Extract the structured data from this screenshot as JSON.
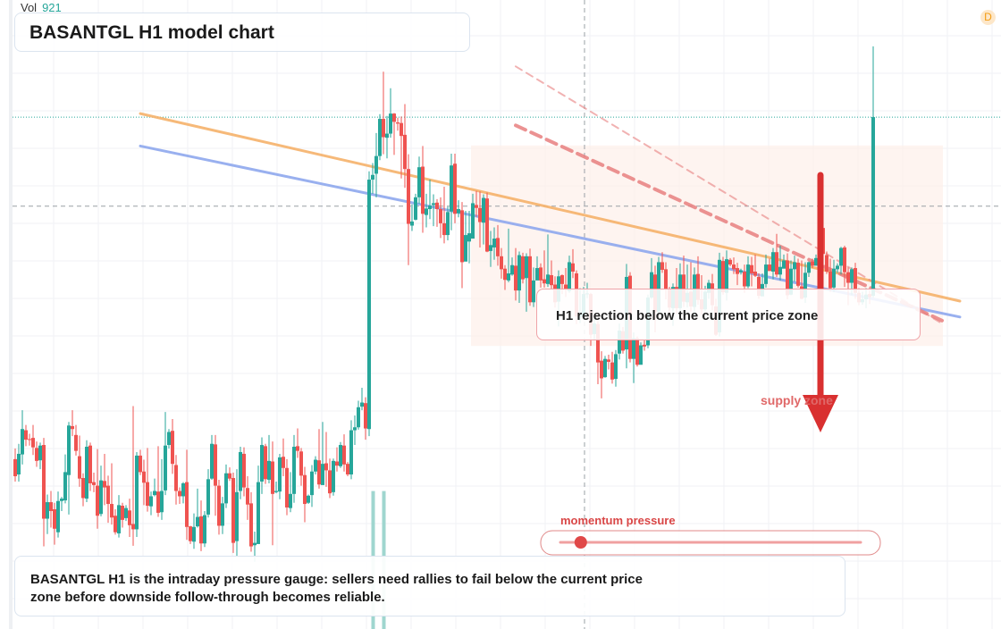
{
  "header": {
    "title": "BASANTGL H1 model chart",
    "volume_label": "Vol",
    "volume_value": "921",
    "badge": "D"
  },
  "annotations": {
    "callout": "H1 rejection below the current price zone",
    "zone_label": "supply zone",
    "gauge_label": "momentum pressure",
    "gauge_level": 0.05
  },
  "footer": {
    "text": "BASANTGL H1 is the intraday pressure gauge: sellers need rallies to fail below the current price zone before downside follow-through becomes reliable."
  },
  "colors": {
    "bull": "#26a69a",
    "bear": "#ef5350",
    "resistance_trend": "#f6b26b",
    "support_trend": "#8fa8ee",
    "down_channel": "#e88080",
    "arrow": "#d93030"
  },
  "chart_data": {
    "type": "candlestick",
    "timeframe": "H1",
    "ylim": [
      0,
      100
    ],
    "current_price": 71.1,
    "reference_level": 86.2,
    "zone": [
      47.4,
      81.4
    ],
    "candles": [
      [
        28.2,
        25.3,
        30.0,
        24.4
      ],
      [
        25.6,
        29.1,
        30.8,
        24.4
      ],
      [
        29.0,
        33.3,
        36.5,
        27.3
      ],
      [
        33.1,
        31.5,
        34.0,
        30.4
      ],
      [
        31.6,
        31.5,
        32.5,
        30.5
      ],
      [
        31.8,
        30.2,
        34.0,
        28.9
      ],
      [
        30.1,
        27.9,
        31.2,
        26.9
      ],
      [
        28.0,
        30.5,
        31.0,
        26.5
      ],
      [
        30.6,
        18.1,
        31.8,
        13.4
      ],
      [
        18.1,
        20.9,
        22.2,
        15.5
      ],
      [
        20.9,
        19.4,
        22.8,
        16.6
      ],
      [
        19.7,
        16.4,
        20.8,
        13.7
      ],
      [
        15.8,
        21.1,
        22.7,
        14.9
      ],
      [
        21.1,
        21.5,
        21.8,
        19.4
      ],
      [
        21.2,
        26.0,
        29.0,
        20.7
      ],
      [
        25.5,
        33.9,
        34.5,
        18.8
      ],
      [
        33.8,
        33.3,
        36.5,
        32.1
      ],
      [
        32.3,
        29.6,
        34.0,
        28.8
      ],
      [
        28.7,
        24.9,
        32.2,
        23.5
      ],
      [
        25.0,
        21.6,
        25.8,
        20.2
      ],
      [
        21.5,
        30.3,
        31.4,
        20.9
      ],
      [
        30.5,
        24.1,
        31.0,
        22.8
      ],
      [
        24.3,
        23.8,
        25.9,
        22.6
      ],
      [
        23.7,
        18.6,
        29.9,
        16.4
      ],
      [
        18.9,
        24.6,
        27.1,
        18.5
      ],
      [
        24.5,
        23.4,
        29.1,
        20.4
      ],
      [
        23.7,
        20.6,
        25.4,
        17.4
      ],
      [
        20.6,
        18.3,
        27.5,
        17.1
      ],
      [
        18.6,
        15.8,
        19.7,
        15.4
      ],
      [
        15.6,
        20.4,
        22.1,
        14.9
      ],
      [
        20.3,
        17.9,
        20.8,
        16.6
      ],
      [
        18.2,
        19.9,
        20.4,
        17.7
      ],
      [
        19.5,
        17.0,
        21.5,
        15.0
      ],
      [
        17.2,
        16.3,
        37.2,
        13.5
      ],
      [
        16.3,
        28.8,
        29.4,
        15.0
      ],
      [
        28.8,
        26.0,
        29.8,
        25.5
      ],
      [
        26.1,
        24.2,
        28.1,
        20.4
      ],
      [
        24.3,
        20.3,
        30.1,
        19.3
      ],
      [
        20.2,
        21.9,
        22.7,
        18.7
      ],
      [
        22.1,
        22.8,
        24.9,
        21.9
      ],
      [
        22.7,
        19.1,
        30.4,
        18.4
      ],
      [
        19.2,
        22.8,
        28.2,
        17.9
      ],
      [
        22.9,
        30.5,
        36.2,
        22.1
      ],
      [
        30.6,
        32.8,
        33.3,
        30.0
      ],
      [
        33.0,
        27.4,
        35.0,
        25.7
      ],
      [
        27.2,
        22.8,
        28.9,
        20.5
      ],
      [
        22.8,
        21.9,
        23.4,
        20.6
      ],
      [
        21.9,
        24.1,
        24.3,
        20.7
      ],
      [
        24.3,
        16.7,
        29.8,
        14.5
      ],
      [
        16.8,
        14.3,
        16.9,
        13.8
      ],
      [
        14.2,
        16.7,
        19.0,
        13.0
      ],
      [
        16.8,
        18.4,
        23.2,
        16.6
      ],
      [
        18.5,
        13.9,
        21.2,
        12.6
      ],
      [
        13.9,
        18.7,
        19.4,
        13.3
      ],
      [
        18.8,
        24.8,
        26.5,
        18.3
      ],
      [
        24.9,
        30.8,
        32.3,
        24.7
      ],
      [
        30.7,
        23.7,
        32.3,
        18.6
      ],
      [
        23.7,
        16.9,
        24.7,
        15.4
      ],
      [
        16.9,
        20.7,
        21.8,
        15.5
      ],
      [
        20.7,
        25.8,
        27.3,
        19.9
      ],
      [
        25.8,
        24.9,
        26.8,
        24.5
      ],
      [
        25.0,
        14.0,
        25.9,
        12.3
      ],
      [
        14.3,
        22.6,
        26.5,
        11.6
      ],
      [
        22.8,
        29.4,
        30.3,
        21.4
      ],
      [
        29.1,
        23.4,
        30.2,
        21.9
      ],
      [
        23.3,
        20.5,
        25.3,
        17.9
      ],
      [
        20.7,
        13.4,
        22.6,
        12.5
      ],
      [
        13.6,
        14.0,
        15.9,
        10.8
      ],
      [
        13.8,
        24.3,
        27.1,
        13.8
      ],
      [
        24.4,
        30.6,
        31.9,
        22.3
      ],
      [
        30.4,
        24.8,
        30.8,
        24.0
      ],
      [
        24.7,
        27.9,
        32.3,
        24.1
      ],
      [
        27.8,
        22.3,
        31.2,
        13.6
      ],
      [
        22.6,
        22.8,
        24.4,
        22.4
      ],
      [
        22.7,
        28.5,
        29.1,
        21.4
      ],
      [
        28.6,
        26.7,
        31.7,
        25.3
      ],
      [
        26.7,
        20.0,
        28.2,
        18.7
      ],
      [
        19.9,
        22.3,
        26.0,
        19.2
      ],
      [
        22.3,
        30.3,
        32.3,
        20.8
      ],
      [
        30.4,
        29.6,
        33.4,
        28.4
      ],
      [
        29.5,
        25.4,
        30.1,
        23.7
      ],
      [
        25.5,
        20.6,
        26.9,
        17.5
      ],
      [
        20.8,
        22.0,
        22.2,
        20.6
      ],
      [
        22.1,
        26.1,
        27.2,
        20.1
      ],
      [
        26.1,
        28.1,
        28.7,
        25.6
      ],
      [
        28.0,
        23.9,
        33.3,
        23.2
      ],
      [
        23.8,
        27.4,
        34.5,
        26.1
      ],
      [
        27.5,
        26.3,
        32.8,
        23.5
      ],
      [
        26.3,
        22.4,
        28.3,
        21.6
      ],
      [
        22.6,
        27.9,
        28.3,
        22.0
      ],
      [
        27.8,
        27.1,
        30.2,
        26.1
      ],
      [
        27.0,
        30.6,
        31.1,
        26.7
      ],
      [
        30.5,
        27.3,
        32.4,
        26.1
      ],
      [
        27.4,
        25.6,
        27.7,
        25.3
      ],
      [
        25.6,
        33.1,
        34.8,
        24.8
      ],
      [
        33.1,
        33.6,
        35.6,
        30.6
      ],
      [
        33.6,
        37.0,
        38.1,
        33.2
      ],
      [
        37.1,
        37.8,
        40.3,
        36.5
      ],
      [
        37.7,
        33.4,
        38.7,
        31.5
      ],
      [
        33.3,
        75.6,
        77.0,
        32.1
      ],
      [
        75.6,
        76.4,
        78.4,
        73.2
      ],
      [
        76.6,
        79.6,
        83.5,
        72.6
      ],
      [
        79.6,
        85.9,
        86.7,
        78.9
      ],
      [
        85.9,
        82.8,
        93.9,
        79.9
      ],
      [
        82.7,
        83.4,
        86.4,
        79.2
      ],
      [
        83.4,
        86.8,
        91.1,
        82.7
      ],
      [
        86.8,
        85.4,
        86.9,
        79.8
      ],
      [
        85.3,
        85.1,
        86.1,
        83.9
      ],
      [
        85.2,
        83.0,
        86.3,
        75.8
      ],
      [
        83.2,
        77.4,
        88.4,
        74.2
      ],
      [
        77.4,
        68.1,
        79.9,
        61.1
      ],
      [
        67.8,
        68.5,
        71.4,
        66.9
      ],
      [
        68.8,
        72.6,
        73.2,
        68.7
      ],
      [
        72.6,
        77.7,
        79.5,
        71.5
      ],
      [
        77.8,
        69.8,
        81.3,
        66.6
      ],
      [
        69.6,
        70.7,
        73.2,
        67.5
      ],
      [
        70.6,
        71.2,
        75.6,
        68.9
      ],
      [
        71.3,
        71.6,
        73.1,
        67.7
      ],
      [
        71.7,
        70.6,
        72.3,
        67.6
      ],
      [
        70.6,
        68.2,
        72.6,
        65.7
      ],
      [
        68.2,
        66.2,
        74.4,
        64.8
      ],
      [
        66.2,
        70.1,
        71.0,
        65.3
      ],
      [
        70.2,
        78.0,
        80.0,
        67.0
      ],
      [
        78.3,
        69.8,
        80.0,
        68.2
      ],
      [
        69.9,
        70.6,
        72.1,
        69.2
      ],
      [
        70.4,
        61.6,
        71.8,
        57.2
      ],
      [
        61.7,
        66.2,
        70.3,
        63.9
      ],
      [
        65.1,
        66.5,
        70.3,
        61.4
      ],
      [
        65.6,
        71.6,
        73.2,
        66.7
      ],
      [
        71.3,
        70.8,
        73.7,
        69.3
      ],
      [
        70.8,
        68.4,
        73.6,
        64.1
      ],
      [
        68.3,
        72.5,
        73.1,
        64.6
      ],
      [
        72.4,
        63.4,
        73.4,
        63.3
      ],
      [
        63.5,
        64.5,
        66.9,
        60.8
      ],
      [
        64.1,
        65.6,
        67.5,
        62.0
      ],
      [
        65.7,
        62.6,
        67.9,
        61.0
      ],
      [
        62.6,
        60.4,
        64.0,
        58.8
      ],
      [
        60.5,
        58.6,
        61.1,
        56.9
      ],
      [
        58.5,
        59.7,
        67.3,
        58.2
      ],
      [
        59.5,
        61.1,
        62.4,
        59.3
      ],
      [
        61.0,
        56.8,
        64.0,
        55.1
      ],
      [
        56.8,
        62.8,
        63.4,
        54.7
      ],
      [
        62.6,
        58.7,
        63.2,
        58.0
      ],
      [
        58.9,
        62.6,
        63.1,
        53.2
      ],
      [
        62.6,
        54.8,
        63.9,
        54.2
      ],
      [
        54.8,
        58.5,
        60.7,
        54.0
      ],
      [
        58.5,
        60.6,
        62.6,
        59.4
      ],
      [
        60.7,
        58.5,
        61.4,
        57.3
      ],
      [
        58.7,
        58.0,
        63.6,
        57.3
      ],
      [
        57.9,
        59.5,
        66.3,
        57.4
      ],
      [
        59.4,
        57.7,
        61.9,
        57.0
      ],
      [
        57.8,
        54.8,
        59.2,
        53.9
      ],
      [
        54.9,
        59.2,
        60.2,
        50.7
      ],
      [
        59.4,
        57.9,
        59.5,
        56.2
      ],
      [
        57.8,
        56.9,
        60.6,
        55.7
      ],
      [
        56.7,
        61.6,
        62.7,
        56.4
      ],
      [
        61.4,
        60.0,
        63.8,
        58.9
      ],
      [
        59.7,
        52.4,
        60.2,
        51.1
      ],
      [
        52.4,
        52.7,
        57.2,
        51.3
      ],
      [
        52.4,
        56.2,
        57.4,
        52.0
      ],
      [
        56.2,
        56.3,
        58.1,
        55.5
      ],
      [
        56.2,
        49.3,
        56.4,
        47.4
      ],
      [
        49.4,
        51.2,
        52.5,
        48.4
      ],
      [
        51.1,
        44.6,
        51.6,
        40.9
      ],
      [
        44.9,
        41.9,
        46.5,
        38.5
      ],
      [
        42.1,
        45.2,
        45.7,
        42.0
      ],
      [
        45.1,
        44.7,
        45.9,
        43.4
      ],
      [
        44.6,
        41.7,
        46.4,
        41.0
      ],
      [
        41.8,
        46.0,
        46.7,
        40.5
      ],
      [
        46.1,
        50.0,
        51.2,
        45.1
      ],
      [
        49.9,
        46.6,
        50.6,
        46.1
      ],
      [
        46.8,
        59.1,
        61.3,
        43.6
      ],
      [
        59.3,
        45.2,
        59.9,
        44.6
      ],
      [
        45.2,
        48.7,
        49.7,
        41.1
      ],
      [
        48.7,
        44.2,
        49.0,
        43.9
      ],
      [
        44.2,
        47.5,
        48.0,
        46.6
      ],
      [
        47.6,
        47.3,
        48.5,
        46.6
      ],
      [
        47.5,
        55.6,
        56.1,
        47.0
      ],
      [
        55.6,
        59.9,
        62.3,
        55.4
      ],
      [
        59.5,
        53.2,
        61.0,
        49.7
      ],
      [
        53.2,
        61.6,
        62.5,
        52.7
      ],
      [
        61.6,
        60.3,
        63.3,
        59.8
      ],
      [
        60.4,
        56.9,
        61.6,
        55.3
      ],
      [
        57.0,
        53.9,
        57.4,
        53.0
      ],
      [
        53.8,
        57.4,
        58.0,
        50.8
      ],
      [
        57.4,
        53.8,
        60.6,
        52.8
      ],
      [
        53.8,
        59.5,
        61.4,
        52.5
      ],
      [
        59.5,
        54.9,
        62.7,
        54.0
      ],
      [
        54.8,
        56.4,
        61.2,
        53.9
      ],
      [
        56.6,
        54.1,
        61.6,
        53.2
      ],
      [
        54.0,
        59.5,
        60.7,
        52.5
      ],
      [
        59.6,
        55.2,
        62.6,
        54.4
      ],
      [
        55.3,
        53.6,
        59.4,
        52.6
      ],
      [
        53.6,
        56.6,
        57.6,
        53.2
      ],
      [
        56.4,
        58.1,
        58.6,
        55.4
      ],
      [
        58.0,
        54.3,
        59.6,
        53.4
      ],
      [
        54.1,
        49.3,
        55.4,
        49.1
      ],
      [
        49.7,
        62.0,
        63.2,
        49.0
      ],
      [
        61.8,
        56.5,
        62.5,
        56.1
      ],
      [
        56.4,
        62.1,
        63.6,
        55.1
      ],
      [
        62.0,
        61.2,
        62.3,
        60.9
      ],
      [
        61.2,
        60.4,
        62.4,
        59.6
      ],
      [
        60.6,
        59.6,
        61.5,
        57.7
      ],
      [
        59.9,
        60.2,
        60.5,
        59.5
      ],
      [
        60.0,
        57.5,
        61.2,
        56.4
      ],
      [
        57.5,
        61.2,
        62.6,
        57.2
      ],
      [
        61.1,
        59.7,
        62.5,
        57.5
      ],
      [
        60.0,
        59.3,
        62.9,
        59.1
      ],
      [
        59.1,
        55.9,
        59.7,
        55.4
      ],
      [
        55.8,
        57.9,
        59.7,
        56.5
      ],
      [
        57.9,
        61.2,
        62.9,
        57.3
      ],
      [
        61.2,
        60.1,
        62.2,
        60.2
      ],
      [
        60.0,
        63.3,
        64.0,
        58.7
      ],
      [
        63.3,
        59.5,
        66.4,
        59.1
      ],
      [
        59.5,
        60.8,
        64.4,
        58.5
      ],
      [
        60.5,
        61.9,
        62.9,
        61.0
      ],
      [
        61.9,
        56.0,
        63.1,
        55.3
      ],
      [
        56.1,
        60.5,
        61.9,
        56.0
      ],
      [
        60.4,
        61.6,
        62.7,
        58.3
      ],
      [
        61.5,
        57.6,
        62.2,
        57.3
      ],
      [
        57.5,
        55.4,
        61.9,
        55.3
      ],
      [
        55.6,
        59.8,
        61.6,
        54.7
      ],
      [
        59.8,
        61.6,
        61.7,
        59.1
      ],
      [
        61.7,
        61.0,
        62.2,
        60.6
      ],
      [
        61.0,
        62.3,
        62.9,
        61.2
      ],
      [
        62.1,
        67.2,
        67.3,
        61.5
      ],
      [
        67.4,
        63.0,
        67.5,
        60.6
      ],
      [
        62.8,
        60.0,
        63.4,
        59.6
      ],
      [
        60.0,
        57.2,
        62.2,
        56.6
      ],
      [
        57.3,
        60.5,
        62.0,
        56.5
      ],
      [
        60.4,
        61.0,
        61.4,
        59.8
      ],
      [
        61.0,
        64.0,
        64.2,
        59.5
      ],
      [
        64.1,
        59.9,
        64.4,
        57.4
      ],
      [
        59.9,
        58.1,
        60.7,
        54.3
      ],
      [
        58.1,
        60.4,
        60.7,
        56.0
      ],
      [
        60.6,
        56.4,
        61.5,
        55.4
      ],
      [
        56.4,
        54.8,
        57.2,
        54.3
      ],
      [
        54.8,
        55.3,
        56.6,
        54.4
      ],
      [
        55.3,
        56.1,
        57.2,
        53.8
      ],
      [
        56.2,
        55.7,
        56.9,
        54.5
      ],
      [
        55.9,
        86.2,
        98.2,
        55.6
      ]
    ],
    "trendlines": [
      {
        "name": "resistance",
        "from": [
          0,
          86.8
        ],
        "to": [
          260,
          55.0
        ]
      },
      {
        "name": "support",
        "from": [
          0,
          81.3
        ],
        "to": [
          260,
          52.3
        ]
      },
      {
        "name": "channel-upper",
        "from": [
          105,
          94.8
        ],
        "to": [
          255,
          51.2
        ]
      },
      {
        "name": "channel-lower",
        "from": [
          105,
          84.8
        ],
        "to": [
          255,
          51.7
        ]
      }
    ],
    "volume_bars": [
      {
        "index": 100,
        "value": 24
      },
      {
        "index": 103,
        "value": 24
      }
    ]
  }
}
